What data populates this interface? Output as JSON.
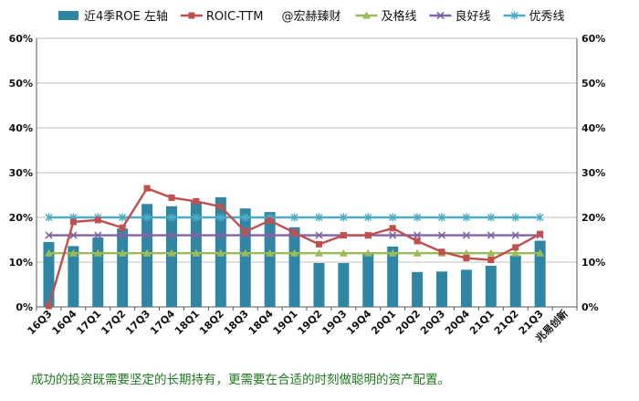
{
  "chart_data": {
    "type": "bar",
    "categories": [
      "16Q3",
      "16Q4",
      "17Q1",
      "17Q2",
      "17Q3",
      "17Q4",
      "18Q1",
      "18Q2",
      "18Q3",
      "18Q4",
      "19Q1",
      "19Q2",
      "19Q3",
      "19Q4",
      "20Q1",
      "20Q2",
      "20Q3",
      "20Q4",
      "21Q1",
      "21Q2",
      "21Q3",
      "兆易创新"
    ],
    "series": [
      {
        "name": "近4季ROE 左轴",
        "kind": "bar",
        "color": "#2e86a4",
        "values": [
          14.5,
          13.6,
          15.5,
          17.5,
          23.0,
          22.5,
          23.5,
          24.5,
          22.0,
          21.2,
          17.8,
          9.8,
          9.8,
          11.8,
          13.5,
          7.8,
          7.9,
          8.3,
          9.2,
          11.5,
          14.8,
          null
        ]
      },
      {
        "name": "ROIC-TTM",
        "kind": "line",
        "color": "#c0504d",
        "marker": "square",
        "values": [
          0.2,
          19.0,
          19.4,
          17.7,
          26.5,
          24.4,
          23.6,
          22.4,
          16.8,
          19.3,
          16.6,
          14.0,
          16.0,
          16.0,
          17.6,
          14.7,
          12.3,
          10.9,
          10.5,
          13.3,
          16.3,
          null
        ]
      },
      {
        "name": "及格线",
        "kind": "line",
        "color": "#9bbb59",
        "marker": "triangle",
        "values": [
          12,
          12,
          12,
          12,
          12,
          12,
          12,
          12,
          12,
          12,
          12,
          12,
          12,
          12,
          12,
          12,
          12,
          12,
          12,
          12,
          12,
          null
        ]
      },
      {
        "name": "良好线",
        "kind": "line",
        "color": "#8064a2",
        "marker": "x",
        "values": [
          16,
          16,
          16,
          16,
          16,
          16,
          16,
          16,
          16,
          16,
          16,
          16,
          16,
          16,
          16,
          16,
          16,
          16,
          16,
          16,
          16,
          null
        ]
      },
      {
        "name": "优秀线",
        "kind": "line",
        "color": "#4bacc6",
        "marker": "asterisk",
        "values": [
          20,
          20,
          20,
          20,
          20,
          20,
          20,
          20,
          20,
          20,
          20,
          20,
          20,
          20,
          20,
          20,
          20,
          20,
          20,
          20,
          20,
          null
        ]
      }
    ],
    "watermark": "@宏赫臻财",
    "yticks": [
      "0%",
      "10%",
      "20%",
      "30%",
      "40%",
      "50%",
      "60%"
    ],
    "ylim": [
      0,
      60
    ],
    "grid": true,
    "legend_position": "top"
  },
  "caption": "成功的投资既需要坚定的长期持有，更需要在合适的时刻做聪明的资产配置。"
}
